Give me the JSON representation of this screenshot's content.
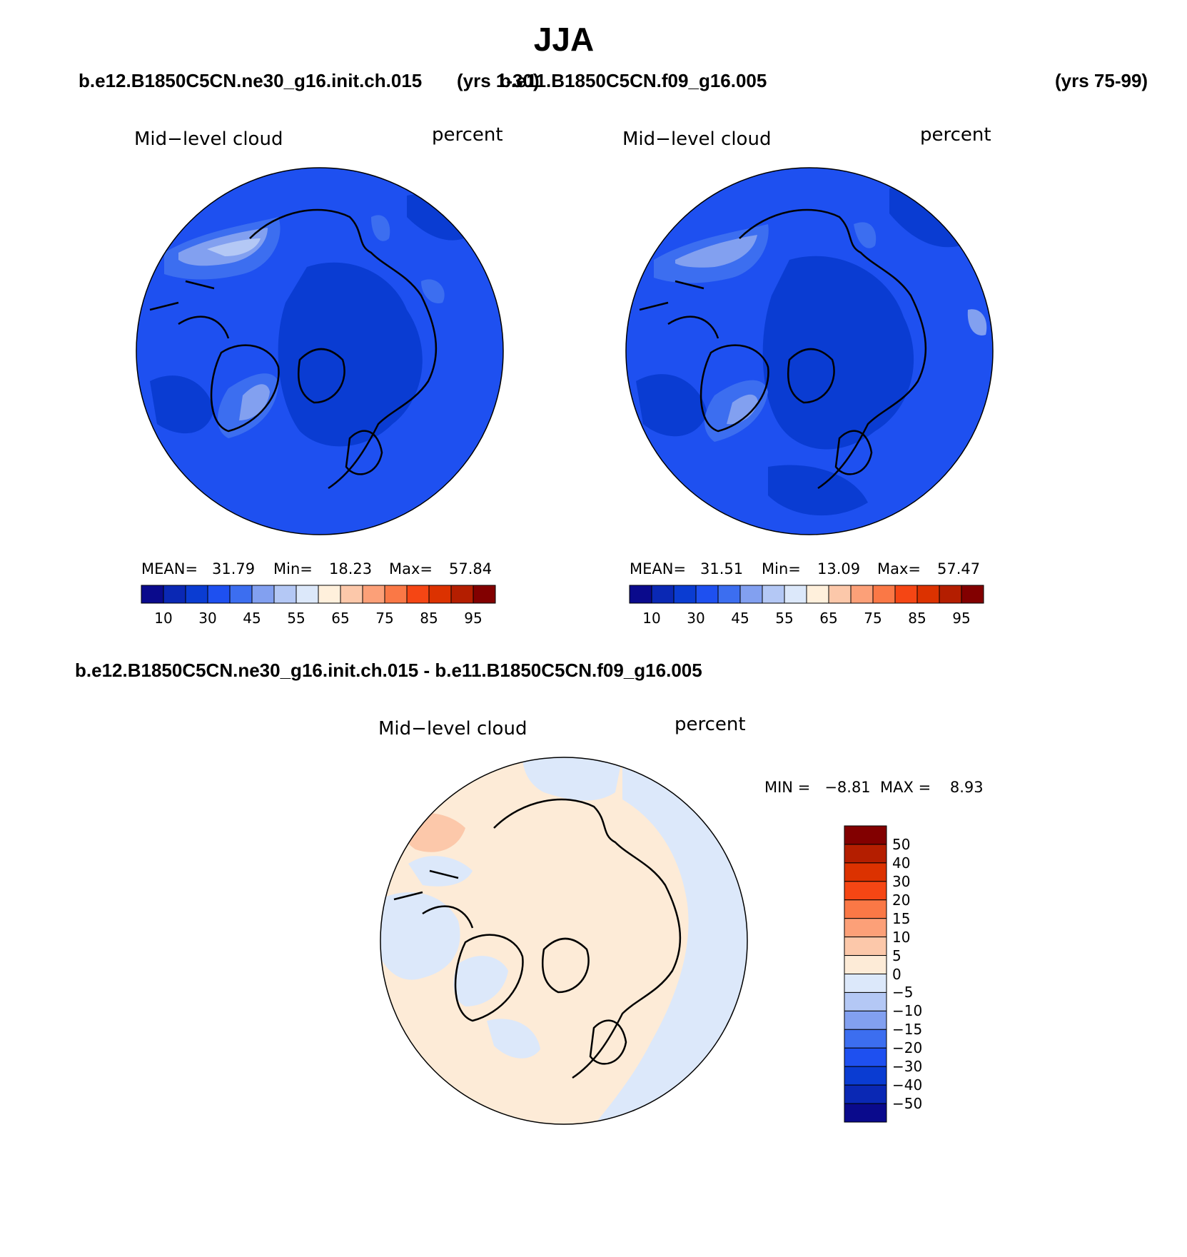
{
  "title": "JJA",
  "cases": {
    "case1": "b.e12.B1850C5CN.ne30_g16.init.ch.015",
    "case1_years": "(yrs 1-30)",
    "case2": "b.e11.B1850C5CN.f09_g16.005",
    "case2_years": "(yrs 75-99)",
    "diff_title": "b.e12.B1850C5CN.ne30_g16.init.ch.015 - b.e11.B1850C5CN.f09_g16.005"
  },
  "panels": [
    {
      "variable": "Mid−level cloud",
      "units": "percent",
      "mean_label": "MEAN=",
      "mean": "31.79",
      "min_label": "Min=",
      "min": "18.23",
      "max_label": "Max=",
      "max": "57.84"
    },
    {
      "variable": "Mid−level cloud",
      "units": "percent",
      "mean_label": "MEAN=",
      "mean": "31.51",
      "min_label": "Min=",
      "min": "13.09",
      "max_label": "Max=",
      "max": "57.47"
    }
  ],
  "diff_panel": {
    "variable": "Mid−level cloud",
    "units": "percent",
    "minmax": "MIN =   −8.81  MAX =    8.93"
  },
  "colorbar": {
    "colors": [
      "#0a0a8c",
      "#0a28b4",
      "#0a3cd2",
      "#1e50f0",
      "#3c6ef0",
      "#82a0f0",
      "#b4c8f5",
      "#dce8fa",
      "#fff0dc",
      "#fcc8aa",
      "#fca078",
      "#fa7846",
      "#f54614",
      "#dc3200",
      "#b41e00",
      "#820000"
    ],
    "labels": [
      "10",
      "30",
      "45",
      "55",
      "65",
      "75",
      "85",
      "95"
    ]
  },
  "diff_colorbar": {
    "colors": [
      "#820000",
      "#b41e00",
      "#dc3200",
      "#f54614",
      "#fa7846",
      "#fca078",
      "#fcc8aa",
      "#fdebd7",
      "#dce8fa",
      "#b4c8f5",
      "#82a0f0",
      "#3c6ef0",
      "#1e50f0",
      "#0a3cd2",
      "#0a28b4",
      "#0a0a8c"
    ],
    "labels": [
      "50",
      "40",
      "30",
      "20",
      "15",
      "10",
      "5",
      "0",
      "−5",
      "−10",
      "−15",
      "−20",
      "−30",
      "−40",
      "−50"
    ]
  },
  "map_colors": {
    "base": "#1e50f0",
    "mid": "#3c6ef0",
    "light": "#82a0f0",
    "lighter": "#b4c8f5",
    "dark": "#0a3cd2",
    "diff_pos": "#fdebd7",
    "diff_neg": "#dce8fa",
    "diff_pos2": "#fcc8aa",
    "diff_neg2": "#b4c8f5"
  }
}
